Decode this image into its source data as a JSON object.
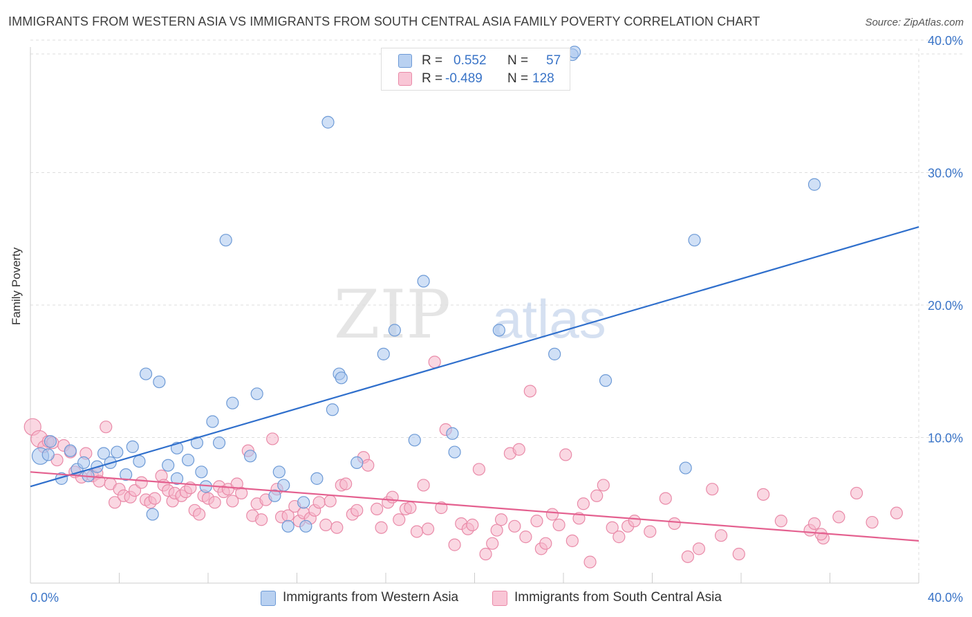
{
  "title": "IMMIGRANTS FROM WESTERN ASIA VS IMMIGRANTS FROM SOUTH CENTRAL ASIA FAMILY POVERTY CORRELATION CHART",
  "source": "Source: ZipAtlas.com",
  "watermark": {
    "zip": "ZIP",
    "atlas": "atlas"
  },
  "colors": {
    "blue_fill": "#a9c7ee",
    "blue_stroke": "#6d9ad6",
    "blue_line": "#2f6fcc",
    "pink_fill": "#f6b6ca",
    "pink_stroke": "#e98aa8",
    "pink_line": "#e4608f",
    "tick_label": "#3a74c7",
    "grid": "#dddddd"
  },
  "legend_top": {
    "rows": [
      {
        "r_label": "R =",
        "r_value": "0.552",
        "n_label": "N =",
        "n_value": "57",
        "color": "blue"
      },
      {
        "r_label": "R =",
        "r_value": "-0.489",
        "n_label": "N =",
        "n_value": "128",
        "color": "pink"
      }
    ]
  },
  "legend_bottom": [
    {
      "label": "Immigrants from Western Asia",
      "color": "blue"
    },
    {
      "label": "Immigrants from South Central Asia",
      "color": "pink"
    }
  ],
  "chart_data": {
    "type": "scatter",
    "title": "IMMIGRANTS FROM WESTERN ASIA VS IMMIGRANTS FROM SOUTH CENTRAL ASIA FAMILY POVERTY CORRELATION CHART",
    "xlabel": "",
    "ylabel": "Family Poverty",
    "xlim": [
      0,
      40
    ],
    "ylim": [
      0,
      40
    ],
    "x_tick_labels": [
      "0.0%",
      "40.0%"
    ],
    "y_tick_values": [
      10,
      20,
      30,
      40
    ],
    "y_tick_labels": [
      "10.0%",
      "20.0%",
      "30.0%",
      "40.0%"
    ],
    "grid": true,
    "legend_position": "bottom",
    "series": [
      {
        "name": "Immigrants from Western Asia",
        "color": "blue",
        "r": 0.552,
        "n": 57,
        "trend": {
          "x": [
            0,
            40
          ],
          "y": [
            6.3,
            25.9
          ]
        },
        "points": [
          [
            0.45,
            8.6,
            2
          ],
          [
            0.9,
            9.7,
            1
          ],
          [
            0.8,
            8.7,
            1
          ],
          [
            1.4,
            6.9,
            1
          ],
          [
            1.8,
            9.0,
            1
          ],
          [
            2.1,
            7.6,
            1
          ],
          [
            2.4,
            8.1,
            1
          ],
          [
            2.6,
            7.1,
            1
          ],
          [
            3.0,
            7.8,
            1
          ],
          [
            3.3,
            8.8,
            1
          ],
          [
            3.6,
            8.1,
            1
          ],
          [
            3.9,
            8.9,
            1
          ],
          [
            4.3,
            7.2,
            1
          ],
          [
            4.6,
            9.3,
            1
          ],
          [
            4.9,
            8.2,
            1
          ],
          [
            5.2,
            14.8,
            1
          ],
          [
            5.5,
            4.2,
            1
          ],
          [
            5.8,
            14.2,
            1
          ],
          [
            6.2,
            7.9,
            1
          ],
          [
            6.6,
            9.2,
            1
          ],
          [
            6.6,
            6.9,
            1
          ],
          [
            7.1,
            8.3,
            1
          ],
          [
            7.5,
            9.6,
            1
          ],
          [
            7.7,
            7.4,
            1
          ],
          [
            7.9,
            6.3,
            1
          ],
          [
            8.2,
            11.2,
            1
          ],
          [
            8.5,
            9.6,
            1
          ],
          [
            8.8,
            24.9,
            1
          ],
          [
            9.1,
            12.6,
            1
          ],
          [
            9.9,
            8.6,
            1
          ],
          [
            10.2,
            13.3,
            1
          ],
          [
            11.0,
            5.6,
            1
          ],
          [
            11.2,
            7.4,
            1
          ],
          [
            11.4,
            6.4,
            1
          ],
          [
            11.6,
            3.3,
            1
          ],
          [
            12.3,
            5.1,
            1
          ],
          [
            12.4,
            3.3,
            1
          ],
          [
            12.9,
            6.9,
            1
          ],
          [
            13.4,
            33.8,
            1
          ],
          [
            13.6,
            12.1,
            1
          ],
          [
            13.9,
            14.8,
            1
          ],
          [
            14.0,
            14.5,
            1
          ],
          [
            14.7,
            8.1,
            1
          ],
          [
            15.9,
            16.3,
            1
          ],
          [
            16.4,
            18.1,
            1
          ],
          [
            17.3,
            9.8,
            1
          ],
          [
            17.7,
            21.8,
            1
          ],
          [
            19.0,
            10.3,
            1
          ],
          [
            19.1,
            8.9,
            1
          ],
          [
            21.1,
            18.1,
            1
          ],
          [
            23.6,
            16.3,
            1
          ],
          [
            25.9,
            14.3,
            1
          ],
          [
            29.5,
            7.7,
            1
          ],
          [
            29.9,
            24.9,
            1
          ],
          [
            35.3,
            29.1,
            1
          ],
          [
            24.4,
            38.9,
            1
          ],
          [
            24.5,
            39.1,
            1
          ]
        ]
      },
      {
        "name": "Immigrants from South Central Asia",
        "color": "pink",
        "r": -0.489,
        "n": 128,
        "trend": {
          "x": [
            0,
            40
          ],
          "y": [
            7.4,
            2.2
          ]
        },
        "points": [
          [
            0.1,
            10.8,
            2
          ],
          [
            0.4,
            9.9,
            2
          ],
          [
            0.6,
            9.3,
            1
          ],
          [
            0.8,
            9.7,
            1
          ],
          [
            1.0,
            9.6,
            1
          ],
          [
            1.2,
            8.3,
            1
          ],
          [
            1.5,
            9.4,
            1
          ],
          [
            1.8,
            8.9,
            1
          ],
          [
            2.0,
            7.4,
            1
          ],
          [
            2.3,
            7.0,
            1
          ],
          [
            2.5,
            8.8,
            1
          ],
          [
            2.8,
            7.1,
            1
          ],
          [
            3.0,
            7.3,
            1
          ],
          [
            3.1,
            6.7,
            1
          ],
          [
            3.4,
            10.8,
            1
          ],
          [
            3.6,
            6.5,
            1
          ],
          [
            3.8,
            5.1,
            1
          ],
          [
            4.0,
            6.1,
            1
          ],
          [
            4.2,
            5.6,
            1
          ],
          [
            4.5,
            5.5,
            1
          ],
          [
            4.7,
            6.0,
            1
          ],
          [
            5.0,
            6.6,
            1
          ],
          [
            5.2,
            5.3,
            1
          ],
          [
            5.4,
            5.1,
            1
          ],
          [
            5.6,
            5.4,
            1
          ],
          [
            5.9,
            7.1,
            1
          ],
          [
            6.0,
            6.4,
            1
          ],
          [
            6.2,
            6.0,
            1
          ],
          [
            6.4,
            5.2,
            1
          ],
          [
            6.5,
            5.8,
            1
          ],
          [
            6.8,
            5.6,
            1
          ],
          [
            7.0,
            5.9,
            1
          ],
          [
            7.2,
            6.2,
            1
          ],
          [
            7.4,
            4.5,
            1
          ],
          [
            7.6,
            4.2,
            1
          ],
          [
            7.8,
            5.6,
            1
          ],
          [
            8.0,
            5.4,
            1
          ],
          [
            8.3,
            5.1,
            1
          ],
          [
            8.5,
            6.3,
            1
          ],
          [
            8.7,
            5.9,
            1
          ],
          [
            8.9,
            6.1,
            1
          ],
          [
            9.1,
            5.2,
            1
          ],
          [
            9.3,
            6.5,
            1
          ],
          [
            9.5,
            5.8,
            1
          ],
          [
            9.8,
            9.0,
            1
          ],
          [
            10.0,
            4.1,
            1
          ],
          [
            10.2,
            5.0,
            1
          ],
          [
            10.4,
            3.8,
            1
          ],
          [
            10.6,
            5.3,
            1
          ],
          [
            10.9,
            9.9,
            1
          ],
          [
            11.1,
            6.1,
            1
          ],
          [
            11.3,
            4.0,
            1
          ],
          [
            11.6,
            4.1,
            1
          ],
          [
            11.9,
            4.8,
            1
          ],
          [
            12.1,
            3.7,
            1
          ],
          [
            12.3,
            4.3,
            1
          ],
          [
            12.6,
            3.9,
            1
          ],
          [
            12.8,
            4.5,
            1
          ],
          [
            13.0,
            5.1,
            1
          ],
          [
            13.3,
            3.4,
            1
          ],
          [
            13.5,
            5.2,
            1
          ],
          [
            13.8,
            3.2,
            1
          ],
          [
            14.0,
            6.4,
            1
          ],
          [
            14.2,
            6.5,
            1
          ],
          [
            14.5,
            4.2,
            1
          ],
          [
            14.7,
            4.5,
            1
          ],
          [
            15.0,
            8.5,
            1
          ],
          [
            15.2,
            7.9,
            1
          ],
          [
            15.6,
            4.6,
            1
          ],
          [
            15.8,
            3.2,
            1
          ],
          [
            16.1,
            5.1,
            1
          ],
          [
            16.3,
            5.5,
            1
          ],
          [
            16.6,
            3.8,
            1
          ],
          [
            16.9,
            4.6,
            1
          ],
          [
            17.1,
            4.7,
            1
          ],
          [
            17.4,
            2.9,
            1
          ],
          [
            17.7,
            6.4,
            1
          ],
          [
            17.9,
            3.1,
            1
          ],
          [
            18.2,
            15.7,
            1
          ],
          [
            18.5,
            4.7,
            1
          ],
          [
            18.7,
            10.6,
            1
          ],
          [
            19.1,
            1.9,
            1
          ],
          [
            19.4,
            3.5,
            1
          ],
          [
            19.7,
            3.1,
            1
          ],
          [
            19.9,
            3.4,
            1
          ],
          [
            20.2,
            7.6,
            1
          ],
          [
            20.5,
            1.2,
            1
          ],
          [
            20.8,
            2.0,
            1
          ],
          [
            21.0,
            3.0,
            1
          ],
          [
            21.2,
            3.8,
            1
          ],
          [
            21.6,
            8.8,
            1
          ],
          [
            21.8,
            3.3,
            1
          ],
          [
            22.0,
            9.1,
            1
          ],
          [
            22.3,
            2.5,
            1
          ],
          [
            22.5,
            13.5,
            1
          ],
          [
            22.8,
            3.7,
            1
          ],
          [
            23.0,
            1.6,
            1
          ],
          [
            23.2,
            2.0,
            1
          ],
          [
            23.5,
            4.2,
            1
          ],
          [
            23.8,
            3.4,
            1
          ],
          [
            24.1,
            8.7,
            1
          ],
          [
            24.4,
            2.2,
            1
          ],
          [
            24.7,
            3.9,
            1
          ],
          [
            24.9,
            5.0,
            1
          ],
          [
            25.2,
            0.6,
            1
          ],
          [
            25.5,
            5.6,
            1
          ],
          [
            25.8,
            6.4,
            1
          ],
          [
            26.2,
            3.2,
            1
          ],
          [
            26.5,
            2.5,
            1
          ],
          [
            26.9,
            3.3,
            1
          ],
          [
            27.2,
            3.7,
            1
          ],
          [
            27.9,
            2.9,
            1
          ],
          [
            28.6,
            5.4,
            1
          ],
          [
            29.0,
            3.5,
            1
          ],
          [
            29.6,
            1.0,
            1
          ],
          [
            30.1,
            1.6,
            1
          ],
          [
            30.7,
            6.1,
            1
          ],
          [
            31.1,
            2.6,
            1
          ],
          [
            31.9,
            1.2,
            1
          ],
          [
            33.0,
            5.7,
            1
          ],
          [
            33.8,
            3.7,
            1
          ],
          [
            35.1,
            3.0,
            1
          ],
          [
            35.7,
            2.4,
            1
          ],
          [
            36.4,
            4.0,
            1
          ],
          [
            37.2,
            5.8,
            1
          ],
          [
            37.9,
            3.6,
            1
          ],
          [
            39.0,
            4.3,
            1
          ],
          [
            35.3,
            3.5,
            1
          ],
          [
            35.6,
            2.7,
            1
          ]
        ]
      }
    ]
  }
}
